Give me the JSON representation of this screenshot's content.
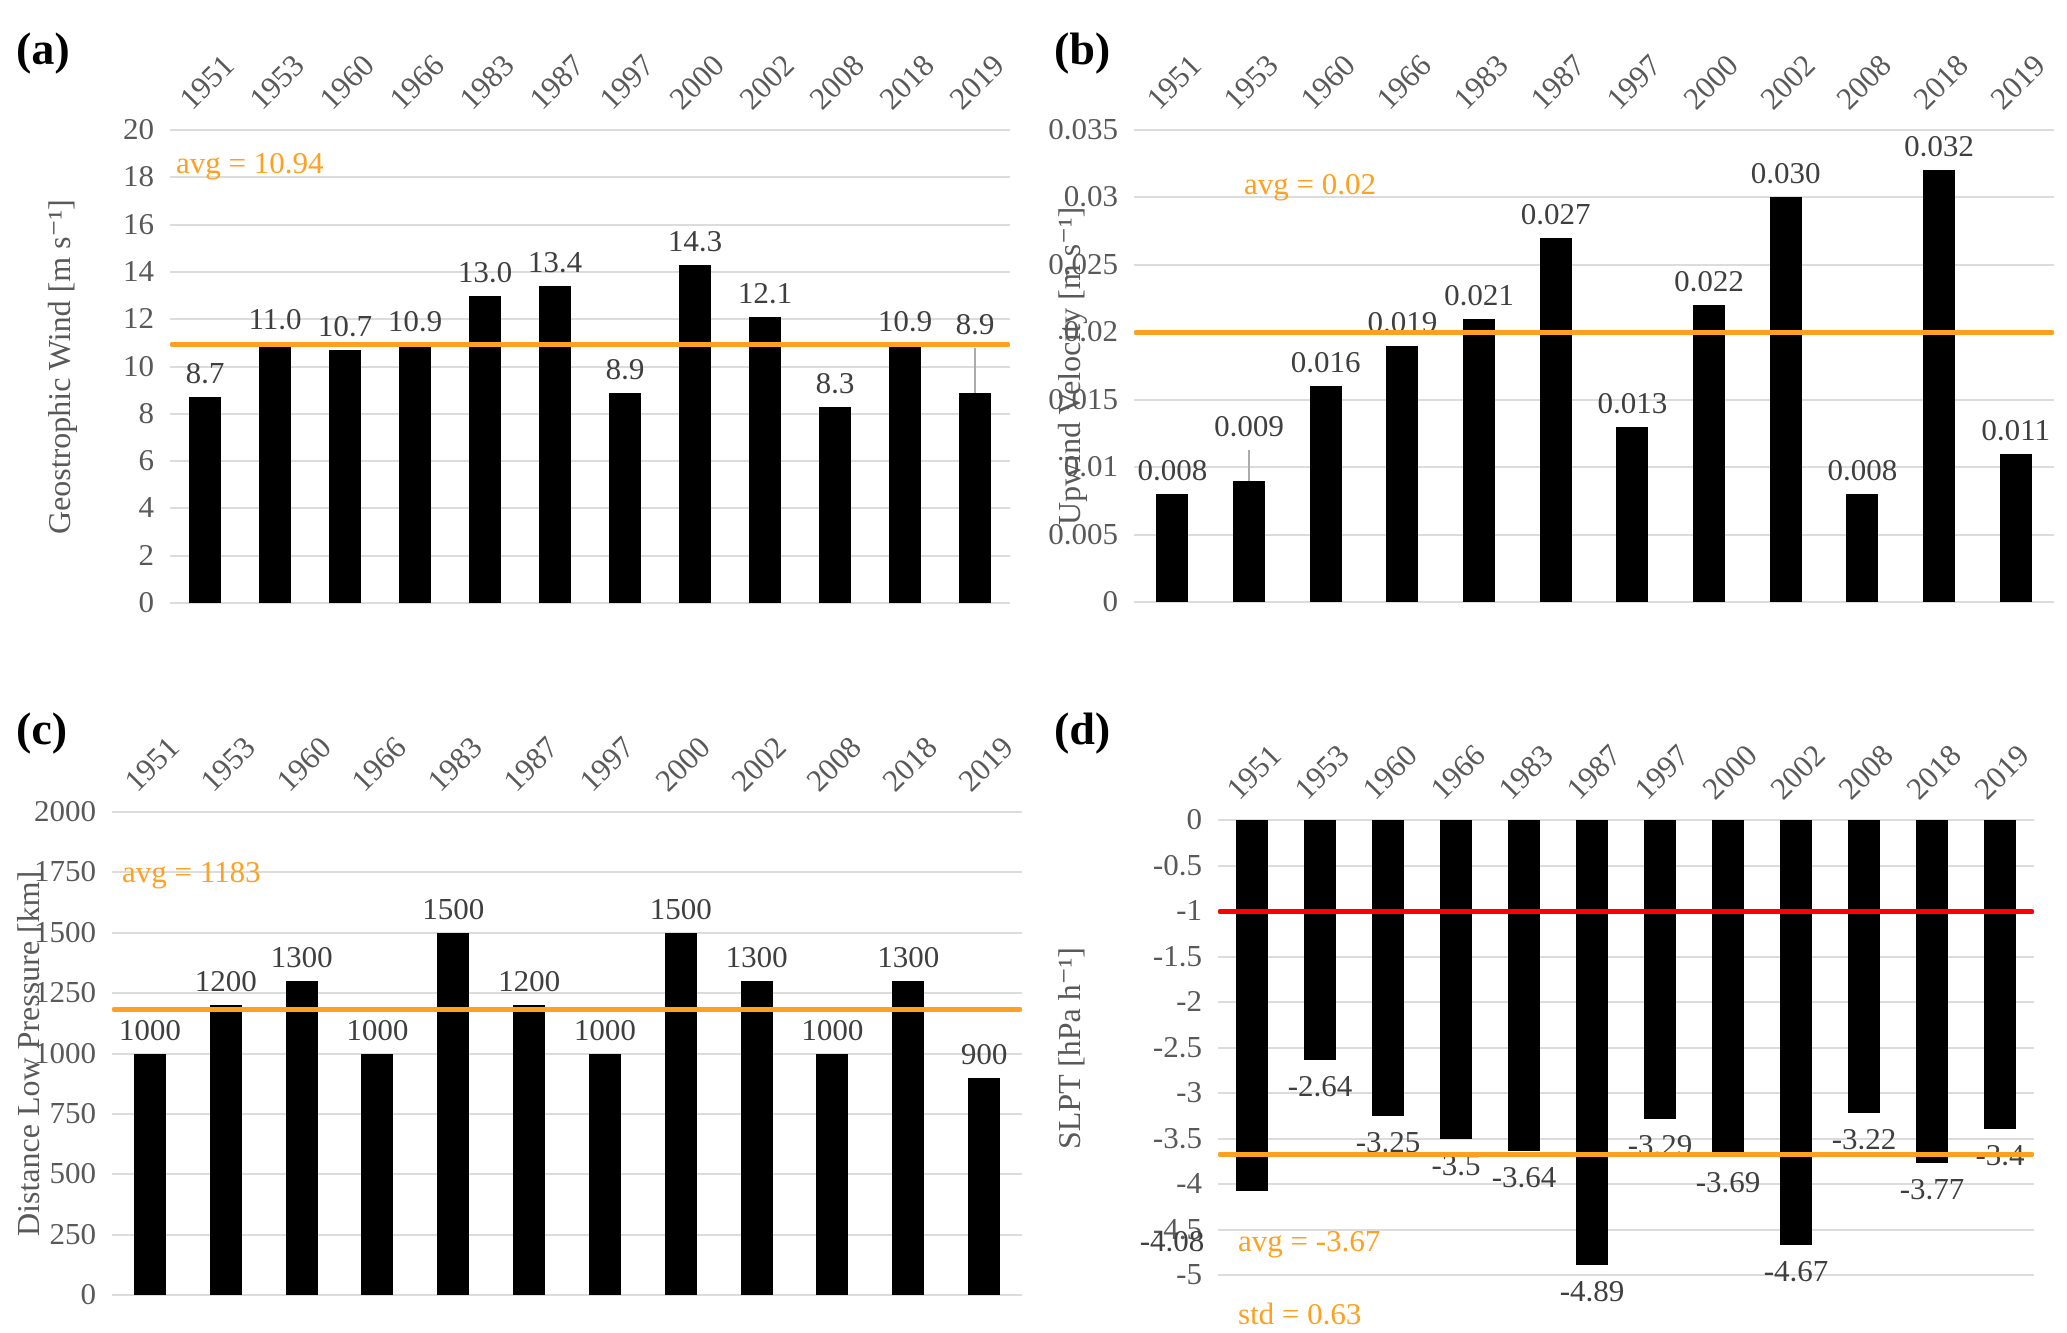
{
  "figure": {
    "background": "#ffffff",
    "bar_color": "#000000",
    "grid_color": "#dcdcdc",
    "accent_orange": "#FFA020",
    "accent_red": "#FF0000",
    "text_gray": "#595959"
  },
  "chart_data": [
    {
      "id": "a",
      "type": "bar",
      "panel_label": "(a)",
      "ylabel": "Geostrophic Wind [m s⁻¹]",
      "xlabel": "",
      "legend": "none",
      "grid": true,
      "categories": [
        "1951",
        "1953",
        "1960",
        "1966",
        "1983",
        "1987",
        "1997",
        "2000",
        "2002",
        "2008",
        "2018",
        "2019"
      ],
      "values": [
        8.7,
        11.0,
        10.7,
        10.9,
        13.0,
        13.4,
        8.9,
        14.3,
        12.1,
        8.3,
        10.9,
        8.9
      ],
      "bar_labels": [
        "8.7",
        "11.0",
        "10.7",
        "10.9",
        "13.0",
        "13.4",
        "8.9",
        "14.3",
        "12.1",
        "8.3",
        "10.9",
        "8.9"
      ],
      "ylim": [
        0,
        20
      ],
      "yticks": [
        "20",
        "18",
        "16",
        "14",
        "12",
        "10",
        "8",
        "6",
        "4",
        "2",
        "0"
      ],
      "bar_color": "#000000",
      "ref_lines": [
        {
          "name": "average",
          "value": 10.94,
          "color": "#FFA020"
        }
      ],
      "annotations": [
        {
          "text": "avg = 10.94",
          "color": "#FFA020"
        }
      ],
      "error_bars": [
        {
          "index": 11,
          "from": 8.9,
          "to": 10.8
        }
      ]
    },
    {
      "id": "b",
      "type": "bar",
      "panel_label": "(b)",
      "ylabel": "Upwind Velocity [m s⁻¹]",
      "xlabel": "",
      "legend": "none",
      "grid": true,
      "categories": [
        "1951",
        "1953",
        "1960",
        "1966",
        "1983",
        "1987",
        "1997",
        "2000",
        "2002",
        "2008",
        "2018",
        "2019"
      ],
      "values": [
        0.008,
        0.009,
        0.016,
        0.019,
        0.021,
        0.027,
        0.013,
        0.022,
        0.03,
        0.008,
        0.032,
        0.011
      ],
      "bar_labels": [
        "0.008",
        "0.009",
        "0.016",
        "0.019",
        "0.021",
        "0.027",
        "0.013",
        "0.022",
        "0.030",
        "0.008",
        "0.032",
        "0.011"
      ],
      "ylim": [
        0,
        0.035
      ],
      "yticks": [
        "0.035",
        "0.03",
        "0.025",
        "0.02",
        "0.015",
        "0.01",
        "0.005",
        "0"
      ],
      "bar_color": "#000000",
      "ref_lines": [
        {
          "name": "average",
          "value": 0.02,
          "color": "#FFA020"
        }
      ],
      "annotations": [
        {
          "text": "avg = 0.02",
          "color": "#FFA020"
        }
      ],
      "error_bars": [
        {
          "index": 1,
          "from": 0.009,
          "to": 0.0113
        }
      ]
    },
    {
      "id": "c",
      "type": "bar",
      "panel_label": "(c)",
      "ylabel": "Distance Low Pressure [km]",
      "xlabel": "",
      "legend": "none",
      "grid": true,
      "categories": [
        "1951",
        "1953",
        "1960",
        "1966",
        "1983",
        "1987",
        "1997",
        "2000",
        "2002",
        "2008",
        "2018",
        "2019"
      ],
      "values": [
        1000,
        1200,
        1300,
        1000,
        1500,
        1200,
        1000,
        1500,
        1300,
        1000,
        1300,
        900
      ],
      "bar_labels": [
        "1000",
        "1200",
        "1300",
        "1000",
        "1500",
        "1200",
        "1000",
        "1500",
        "1300",
        "1000",
        "1300",
        "900"
      ],
      "ylim": [
        0,
        2000
      ],
      "yticks": [
        "2000",
        "1750",
        "1500",
        "1250",
        "1000",
        "750",
        "500",
        "250",
        "0"
      ],
      "bar_color": "#000000",
      "ref_lines": [
        {
          "name": "average",
          "value": 1183,
          "color": "#FFA020"
        }
      ],
      "annotations": [
        {
          "text": "avg = 1183",
          "color": "#FFA020"
        }
      ],
      "error_bars": []
    },
    {
      "id": "d",
      "type": "bar",
      "panel_label": "(d)",
      "ylabel": "SLPT [hPa h⁻¹]",
      "xlabel": "",
      "legend": "none",
      "grid": true,
      "categories": [
        "1951",
        "1953",
        "1960",
        "1966",
        "1983",
        "1987",
        "1997",
        "2000",
        "2002",
        "2008",
        "2018",
        "2019"
      ],
      "values": [
        -4.08,
        -2.64,
        -3.25,
        -3.5,
        -3.64,
        -4.89,
        -3.29,
        -3.69,
        -4.67,
        -3.22,
        -3.77,
        -3.4
      ],
      "bar_labels": [
        "-4.08",
        "-2.64",
        "-3.25",
        "-3.5",
        "-3.64",
        "-4.89",
        "-3.29",
        "-3.69",
        "-4.67",
        "-3.22",
        "-3.77",
        "-3.4"
      ],
      "ylim": [
        -5,
        0
      ],
      "yticks": [
        "0",
        "-0.5",
        "-1",
        "-1.5",
        "-2",
        "-2.5",
        "-3",
        "-3.5",
        "-4",
        "-4.5",
        "-5"
      ],
      "bar_color": "#000000",
      "ref_lines": [
        {
          "name": "threshold",
          "value": -1,
          "color": "#FF0000"
        },
        {
          "name": "average",
          "value": -3.67,
          "color": "#FFA020"
        }
      ],
      "annotations": [
        {
          "text": "avg = -3.67",
          "color": "#FFA020"
        },
        {
          "text": "std = 0.63",
          "color": "#FFA020"
        }
      ],
      "error_bars": []
    }
  ]
}
